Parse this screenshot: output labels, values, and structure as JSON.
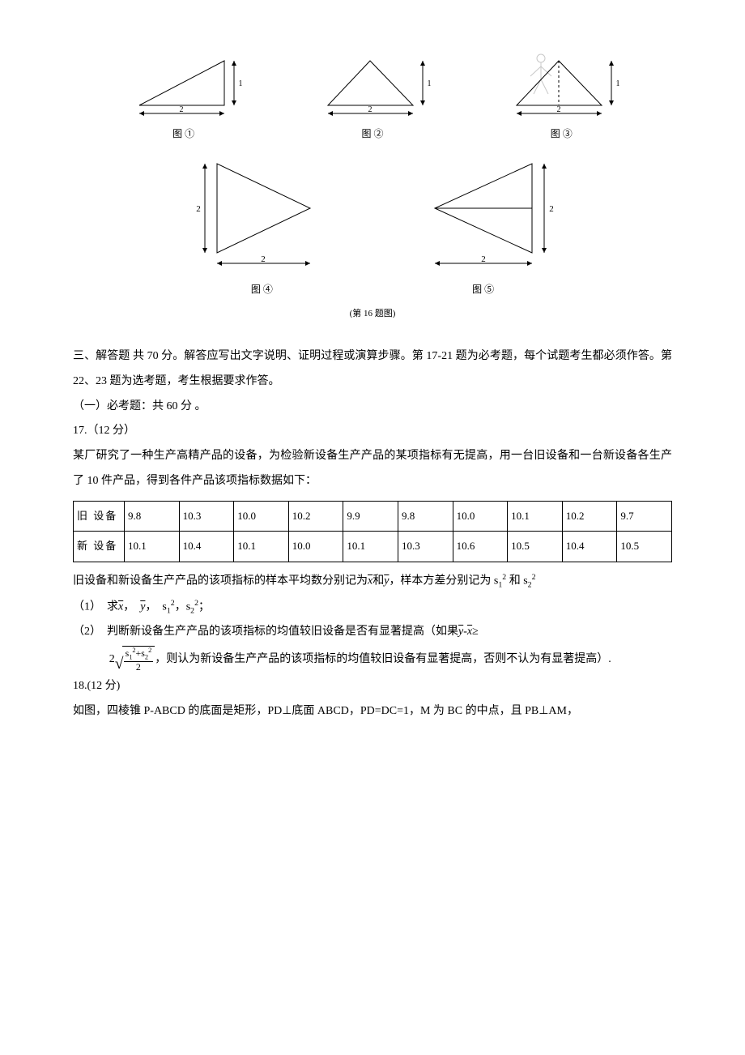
{
  "figures": {
    "row1": [
      {
        "type": "right-triangle-right",
        "w": 2,
        "h": 1,
        "label": "图 ①"
      },
      {
        "type": "iso-triangle",
        "w": 2,
        "h": 1,
        "label": "图 ②"
      },
      {
        "type": "iso-triangle-dashed",
        "w": 2,
        "h": 1,
        "label": "图 ③",
        "watermark": true
      }
    ],
    "row2": [
      {
        "type": "triangle-point-right",
        "w": 2,
        "h": 2,
        "label": "图 ④"
      },
      {
        "type": "bowtie",
        "w": 2,
        "h": 2,
        "label": "图 ⑤"
      }
    ],
    "caption": "(第 16 题图)",
    "stroke": "#000000",
    "stroke_width": 1
  },
  "section3": {
    "title": "三、解答题 共 70 分。解答应写出文字说明、证明过程或演算步骤。第 17-21 题为必考题，每个试题考生都必须作答。第 22、23 题为选考题，考生根据要求作答。",
    "sub1": "（一）必考题：共 60 分 。"
  },
  "q17": {
    "header": "17.（12 分）",
    "line1": "某厂研究了一种生产高精产品的设备，为检验新设备生产产品的某项指标有无提高，用一台旧设备和一台新设备各生产了 10 件产品，得到各件产品该项指标数据如下：",
    "table": {
      "rows": [
        {
          "h": "旧 设备",
          "v": [
            "9.8",
            "10.3",
            "10.0",
            "10.2",
            "9.9",
            "9.8",
            "10.0",
            "10.1",
            "10.2",
            "9.7"
          ]
        },
        {
          "h": "新 设备",
          "v": [
            "10.1",
            "10.4",
            "10.1",
            "10.0",
            "10.1",
            "10.3",
            "10.6",
            "10.5",
            "10.4",
            "10.5"
          ]
        }
      ]
    },
    "after_table_pre": "旧设备和新设备生产产品的该项指标的样本平均数分别记为",
    "xbar": "x",
    "ybar": "y",
    "after_table_mid": "和",
    "after_table_post": "，样本方差分别记为 s",
    "after_table_end": " 和 s",
    "p1_pre": "（1）　求",
    "p1_sep": "，　",
    "p1_sep2": "，　s",
    "p1_sep3": "，s",
    "p1_end": "；",
    "p2_pre": "（2）　判断新设备生产产品的该项指标的均值较旧设备是否有显著提高（如果",
    "p2_ge": "≥",
    "p2_two": "2",
    "frac_num_a": "s",
    "frac_num_plus": "+",
    "frac_num_b": "s",
    "frac_den": "2",
    "p2_post": "，则认为新设备生产产品的该项指标的均值较旧设备有显著提高，否则不认为有显著提高）."
  },
  "q18": {
    "header": "18.(12 分)",
    "body": "如图，四棱锥 P-ABCD 的底面是矩形，PD⊥底面 ABCD，PD=DC=1，M 为 BC 的中点，且 PB⊥AM，"
  }
}
